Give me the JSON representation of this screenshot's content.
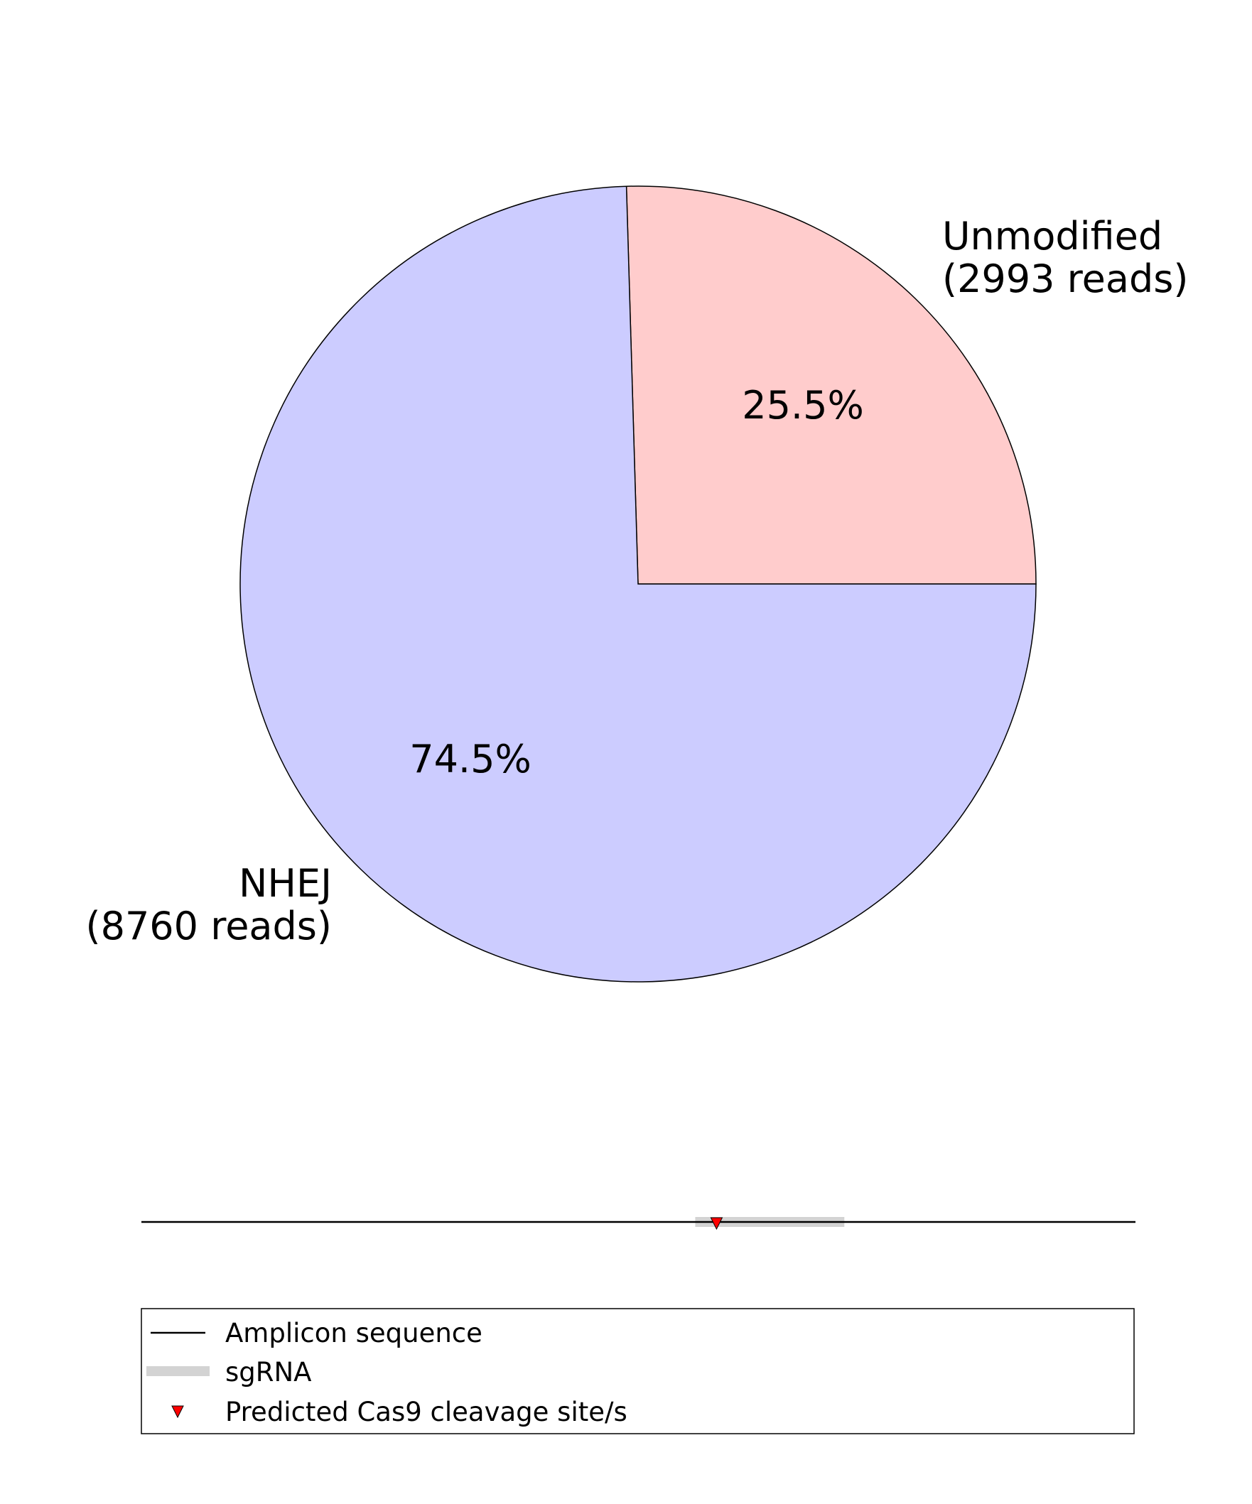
{
  "chart_data": {
    "type": "pie",
    "slices": [
      {
        "label": "Unmodified",
        "reads_label": "(2993 reads)",
        "reads": 2993,
        "percent_label": "25.5%",
        "color": "#ffcccc"
      },
      {
        "label": "NHEJ",
        "reads_label": "(8760 reads)",
        "reads": 8760,
        "percent_label": "74.5%",
        "color": "#ccccff"
      }
    ]
  },
  "amplicon": {
    "length": 140,
    "sgrna_start": 78,
    "sgrna_end": 99,
    "cut_site": 81,
    "line_color": "#000000",
    "sgrna_color": "#d3d3d3",
    "cut_color": "#ff0000"
  },
  "legend": {
    "items": [
      {
        "label": "Amplicon sequence",
        "marker": "line"
      },
      {
        "label": "sgRNA",
        "marker": "thick-bar"
      },
      {
        "label": "Predicted Cas9 cleavage site/s",
        "marker": "red-triangle"
      }
    ]
  }
}
